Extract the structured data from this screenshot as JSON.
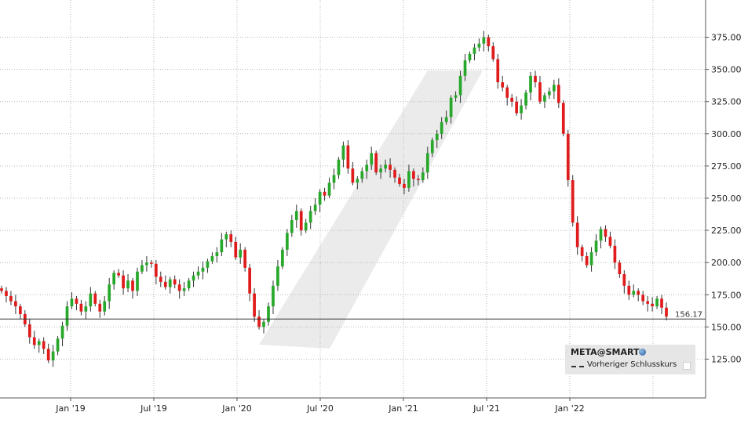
{
  "chart_data": {
    "type": "candlestick",
    "title": "",
    "xlabel": "",
    "ylabel": "",
    "ylim": [
      100,
      400
    ],
    "yticks": [
      125,
      150,
      175,
      200,
      225,
      250,
      275,
      300,
      325,
      350,
      375
    ],
    "ytick_labels": [
      "125.00",
      "150.00",
      "175.00",
      "200.00",
      "225.00",
      "250.00",
      "275.00",
      "300.00",
      "325.00",
      "350.00",
      "375.00"
    ],
    "xtick_labels": [
      "Jan '19",
      "Jul '19",
      "Jan '20",
      "Jul '20",
      "Jan '21",
      "Jul '21",
      "Jan '22"
    ],
    "reference_line": {
      "name": "Vorheriger Schlusskurs",
      "value": 156.17,
      "label": "156.17"
    },
    "series": [
      {
        "name": "META@SMART",
        "weekly_close": [
          178,
          174,
          170,
          166,
          160,
          152,
          142,
          136,
          139,
          133,
          124,
          131,
          141,
          151,
          166,
          172,
          168,
          162,
          166,
          176,
          168,
          162,
          170,
          183,
          192,
          190,
          180,
          186,
          178,
          193,
          198,
          200,
          199,
          189,
          185,
          181,
          187,
          183,
          178,
          180,
          186,
          190,
          193,
          196,
          201,
          205,
          208,
          218,
          222,
          216,
          204,
          210,
          196,
          176,
          158,
          150,
          154,
          166,
          182,
          197,
          210,
          223,
          233,
          240,
          225,
          231,
          240,
          245,
          255,
          252,
          262,
          268,
          280,
          291,
          273,
          262,
          265,
          271,
          276,
          285,
          270,
          273,
          276,
          272,
          266,
          261,
          258,
          271,
          265,
          264,
          270,
          285,
          295,
          300,
          309,
          313,
          328,
          330,
          345,
          357,
          362,
          367,
          370,
          375,
          368,
          358,
          340,
          336,
          328,
          325,
          316,
          322,
          332,
          345,
          340,
          325,
          330,
          333,
          338,
          324,
          300,
          264,
          231,
          212,
          205,
          198,
          208,
          217,
          226,
          220,
          213,
          200,
          191,
          182,
          175,
          178,
          175,
          170,
          168,
          166,
          172,
          165,
          158
        ]
      }
    ]
  },
  "legend": {
    "ticker": "META@SMART",
    "globe_icon": "globe-icon",
    "prev_close_label": "Vorheriger Schlusskurs",
    "checkbox_icon": "checkbox-icon"
  },
  "colors": {
    "up": "#27a82a",
    "down": "#e01b1b",
    "wick": "#333333",
    "grid": "#b8b8b8"
  }
}
